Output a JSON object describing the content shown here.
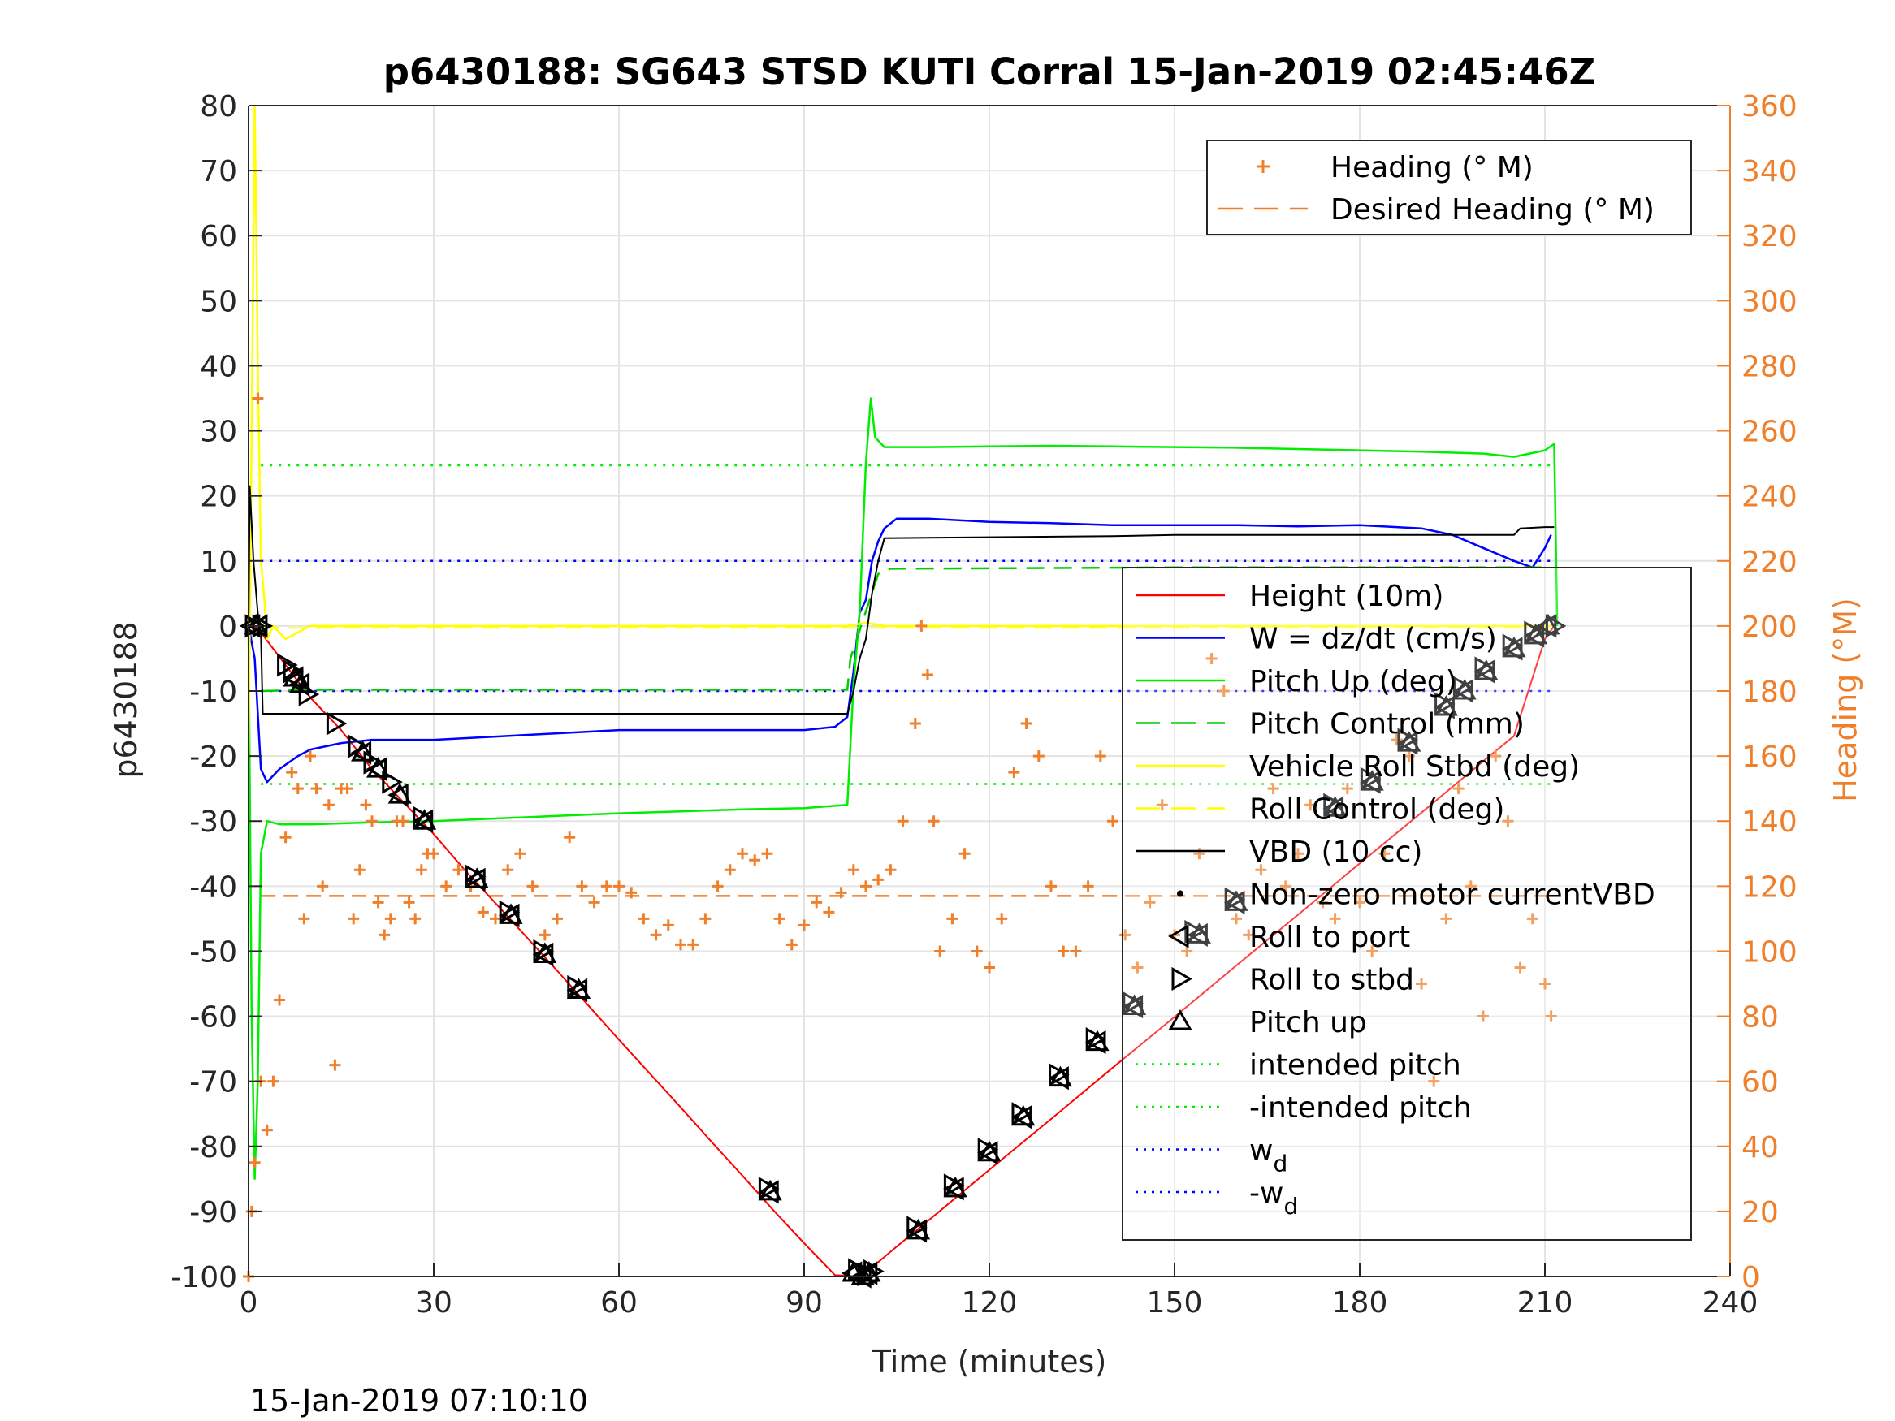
{
  "footer": {
    "timestamp": "15-Jan-2019 07:10:10"
  },
  "chart_data": {
    "type": "line",
    "title": "p6430188: SG643 STSD KUTI Corral 15-Jan-2019 02:45:46Z",
    "xlabel": "Time (minutes)",
    "ylabel": "p6430188",
    "ylabel_right": "Heading (°M)",
    "xlim": [
      0,
      240
    ],
    "ylim": [
      -100,
      80
    ],
    "ylim_right": [
      0,
      360
    ],
    "x_ticks": [
      0,
      30,
      60,
      90,
      120,
      150,
      180,
      210,
      240
    ],
    "y_ticks": [
      80,
      70,
      60,
      50,
      40,
      30,
      20,
      10,
      0,
      -10,
      -20,
      -30,
      -40,
      -50,
      -60,
      -70,
      -80,
      -90,
      -100
    ],
    "y_ticks_right": [
      360,
      340,
      320,
      300,
      280,
      260,
      240,
      220,
      200,
      180,
      160,
      140,
      120,
      100,
      80,
      60,
      40,
      20,
      0
    ],
    "grid": true,
    "colors": {
      "height": "#ff0000",
      "w": "#0000ff",
      "pitch_up": "#00ee00",
      "pitch_control": "#00cc00",
      "roll": "#ffff00",
      "vbd": "#000000",
      "heading": "#ef7f2a",
      "intended_pitch": "#00ee00",
      "w_d": "#0000ff"
    },
    "legend_heading": [
      {
        "label": "Heading (° M)",
        "marker": "plus",
        "color": "#ef7f2a"
      },
      {
        "label": "Desired Heading (° M)",
        "marker": "dash",
        "color": "#ef7f2a"
      }
    ],
    "legend_main": [
      {
        "label": "Height (10m)",
        "marker": "line",
        "color": "#ff0000"
      },
      {
        "label": "W = dz/dt (cm/s)",
        "marker": "line",
        "color": "#0000ff"
      },
      {
        "label": "Pitch Up (deg)",
        "marker": "line",
        "color": "#00ee00"
      },
      {
        "label": "Pitch Control (mm)",
        "marker": "dash",
        "color": "#00cc00"
      },
      {
        "label": "Vehicle Roll Stbd (deg)",
        "marker": "line",
        "color": "#ffff00"
      },
      {
        "label": "Roll Control (deg)",
        "marker": "dash",
        "color": "#ffff00"
      },
      {
        "label": "VBD (10 cc)",
        "marker": "line",
        "color": "#000000"
      },
      {
        "label": "Non-zero motor currentVBD",
        "marker": "dot",
        "color": "#000000"
      },
      {
        "label": "Roll to port",
        "marker": "tri-left",
        "color": "#000000"
      },
      {
        "label": "Roll to stbd",
        "marker": "tri-right",
        "color": "#000000"
      },
      {
        "label": "Pitch up",
        "marker": "tri-up",
        "color": "#000000"
      },
      {
        "label": "intended pitch",
        "marker": "dotted",
        "color": "#00ee00"
      },
      {
        "label": "-intended pitch",
        "marker": "dotted",
        "color": "#00ee00"
      },
      {
        "label": "w",
        "sub": "d",
        "marker": "dotted",
        "color": "#0000ff"
      },
      {
        "label": "-w",
        "sub": "d",
        "marker": "dotted",
        "color": "#0000ff"
      }
    ],
    "reference_lines": {
      "intended_pitch": 24.7,
      "neg_intended_pitch": -24.3,
      "w_d": 10,
      "neg_w_d": -10,
      "desired_heading_deg": 117
    },
    "series": [
      {
        "name": "Height (10m)",
        "x": [
          0,
          1,
          2,
          6,
          10,
          15,
          20,
          25,
          30,
          35,
          40,
          45,
          50,
          55,
          60,
          65,
          70,
          75,
          80,
          85,
          90,
          95,
          99,
          102,
          105,
          110,
          120,
          130,
          140,
          150,
          160,
          170,
          180,
          190,
          200,
          205,
          210,
          211.5
        ],
        "y": [
          0,
          0,
          -1,
          -6,
          -11,
          -16,
          -22,
          -27,
          -32,
          -37.5,
          -42.6,
          -47.8,
          -53,
          -58.3,
          -63.6,
          -68.8,
          -74,
          -79.3,
          -84.5,
          -89.8,
          -94.9,
          -99.8,
          -100,
          -97.8,
          -95.4,
          -91.5,
          -83.6,
          -75.8,
          -67.9,
          -60.1,
          -52.2,
          -44.4,
          -36.5,
          -28.7,
          -20.8,
          -16.9,
          -2,
          0
        ]
      },
      {
        "name": "W = dz/dt (cm/s)",
        "x": [
          0,
          1,
          2,
          3,
          5,
          8,
          10,
          15,
          20,
          25,
          30,
          40,
          50,
          60,
          70,
          80,
          90,
          95,
          97,
          98,
          99,
          100,
          101,
          102,
          103,
          105,
          110,
          120,
          130,
          140,
          150,
          160,
          170,
          180,
          190,
          195,
          200,
          205,
          208,
          210,
          211
        ],
        "y": [
          0,
          -5,
          -22,
          -24,
          -22,
          -20,
          -19,
          -18,
          -17.5,
          -17.5,
          -17.5,
          -17,
          -16.5,
          -16,
          -16,
          -16,
          -16,
          -15.5,
          -14,
          -7,
          2,
          4,
          10,
          13,
          15,
          16.5,
          16.5,
          16,
          15.8,
          15.5,
          15.5,
          15.5,
          15.3,
          15.5,
          15,
          14,
          12,
          10,
          9,
          12,
          14
        ]
      },
      {
        "name": "Pitch Up (deg)",
        "x": [
          0,
          0.5,
          1,
          1.5,
          2,
          3,
          5,
          10,
          20,
          30,
          40,
          50,
          60,
          70,
          80,
          90,
          97,
          98,
          99,
          100,
          100.8,
          101.5,
          103,
          110,
          120,
          130,
          140,
          150,
          160,
          170,
          180,
          190,
          200,
          205,
          210,
          211.5,
          212
        ],
        "y": [
          0,
          -60,
          -85,
          -70,
          -35,
          -30,
          -30.5,
          -30.5,
          -30.2,
          -30,
          -29.6,
          -29.2,
          -28.8,
          -28.5,
          -28.2,
          -28,
          -27.5,
          -9,
          2,
          25,
          35,
          29,
          27.5,
          27.5,
          27.6,
          27.7,
          27.6,
          27.5,
          27.4,
          27.2,
          27,
          26.8,
          26.5,
          26,
          27,
          28,
          0
        ]
      },
      {
        "name": "Pitch Control (mm)",
        "x": [
          2,
          12,
          70,
          97,
          97.5,
          102,
          104,
          150,
          211
        ],
        "y": [
          -10,
          -9.8,
          -9.8,
          -9.8,
          -5,
          8,
          8.8,
          9,
          9
        ]
      },
      {
        "name": "Vehicle Roll Stbd (deg)",
        "x": [
          0,
          0.5,
          1,
          1.5,
          2,
          2.5,
          3,
          4,
          6,
          8,
          10,
          15,
          20,
          30,
          40,
          60,
          80,
          97,
          100,
          103,
          120,
          150,
          170,
          190,
          210,
          211
        ],
        "y": [
          -20,
          30,
          80,
          40,
          10,
          5,
          -2,
          0,
          -2,
          -1,
          0,
          0,
          0,
          0,
          0,
          0,
          0,
          0,
          0.5,
          0,
          0,
          0,
          0,
          0,
          0,
          0
        ]
      },
      {
        "name": "Roll Control (deg)",
        "x": [
          2,
          211
        ],
        "y": [
          -0.3,
          -0.3
        ]
      },
      {
        "name": "VBD (10 cc)",
        "x": [
          0,
          0.2,
          0.8,
          1.5,
          2,
          2.3,
          97,
          98,
          99,
          100,
          101,
          102,
          103,
          140,
          150,
          175,
          190,
          205,
          206,
          210,
          211.5
        ],
        "y": [
          0,
          21.5,
          10,
          2,
          -1,
          -13.5,
          -13.5,
          -10,
          -5,
          -2,
          5,
          10,
          13.5,
          13.8,
          14,
          14,
          14,
          14,
          15,
          15.2,
          15.2
        ]
      },
      {
        "name": "Heading (° M)",
        "x": [
          0,
          0.5,
          1,
          1.5,
          2,
          3,
          4,
          5,
          6,
          7,
          8,
          9,
          10,
          11,
          12,
          13,
          14,
          15,
          16,
          17,
          18,
          19,
          20,
          21,
          22,
          23,
          24,
          25,
          26,
          27,
          28,
          29,
          30,
          32,
          34,
          36,
          38,
          40,
          42,
          44,
          46,
          48,
          50,
          52,
          54,
          56,
          58,
          60,
          62,
          64,
          66,
          68,
          70,
          72,
          74,
          76,
          78,
          80,
          82,
          84,
          86,
          88,
          90,
          92,
          94,
          96,
          98,
          100,
          102,
          104,
          106,
          108,
          109,
          110,
          111,
          112,
          114,
          116,
          118,
          120,
          122,
          124,
          126,
          128,
          130,
          132,
          134,
          136,
          138,
          140,
          142,
          144,
          146,
          148,
          150,
          152,
          154,
          156,
          158,
          160,
          162,
          164,
          166,
          168,
          170,
          172,
          174,
          176,
          178,
          180,
          182,
          184,
          186,
          188,
          190,
          192,
          194,
          196,
          198,
          200,
          202,
          204,
          206,
          208,
          210,
          211
        ],
        "y": [
          0,
          20,
          35,
          270,
          60,
          45,
          60,
          85,
          135,
          155,
          150,
          110,
          160,
          150,
          120,
          145,
          65,
          150,
          150,
          110,
          125,
          145,
          140,
          115,
          105,
          110,
          140,
          140,
          115,
          110,
          125,
          130,
          130,
          120,
          125,
          120,
          112,
          110,
          125,
          130,
          120,
          105,
          110,
          135,
          120,
          115,
          120,
          120,
          118,
          110,
          105,
          108,
          102,
          102,
          110,
          120,
          125,
          130,
          128,
          130,
          110,
          102,
          108,
          115,
          112,
          118,
          125,
          120,
          122,
          125,
          140,
          170,
          200,
          185,
          140,
          100,
          110,
          130,
          100,
          95,
          110,
          155,
          170,
          160,
          120,
          100,
          100,
          120,
          160,
          140,
          105,
          95,
          115,
          145,
          105,
          100,
          130,
          190,
          180,
          110,
          105,
          125,
          150,
          120,
          130,
          145,
          115,
          110,
          150,
          115,
          100,
          130,
          165,
          160,
          90,
          60,
          110,
          150,
          120,
          80,
          160,
          140,
          95,
          110,
          90,
          80
        ]
      }
    ],
    "markers": {
      "roll_to_port": {
        "x": [
          0.5,
          1.7,
          7.5,
          8.5,
          18.5,
          21,
          24.5,
          28.5,
          37,
          42.5,
          48,
          53.5,
          84.5,
          98,
          99.5,
          100.5,
          108.5,
          114.5,
          120,
          125.5,
          131.5,
          137.5,
          143.5,
          154,
          160,
          176,
          182,
          188,
          194,
          197,
          200.5,
          205,
          208.5,
          210.5
        ],
        "y": [
          0,
          0,
          -8,
          -9,
          -19.5,
          -22,
          -26,
          -30,
          -39,
          -44.5,
          -50.5,
          -56,
          -87,
          -99.5,
          -100,
          -99.5,
          -93,
          -86.5,
          -81,
          -75.5,
          -69.5,
          -64,
          -58.5,
          -47.5,
          -42.5,
          -28,
          -24,
          -18,
          -12.5,
          -10,
          -7,
          -3.5,
          -1.5,
          0
        ]
      },
      "roll_to_stbd": {
        "x": [
          0.8,
          2,
          6,
          7,
          9.5,
          14,
          17.5,
          20,
          23,
          28,
          36.5,
          42,
          47.5,
          53,
          84,
          98.5,
          100,
          101,
          108,
          114,
          119.5,
          125,
          131,
          137,
          143,
          153,
          159.5,
          175.5,
          181.5,
          187.5,
          193.5,
          196.5,
          200,
          204.5,
          208,
          211.5
        ],
        "y": [
          0,
          0,
          -6,
          -7,
          -10.5,
          -15,
          -18.5,
          -21,
          -24,
          -29.5,
          -38.5,
          -44,
          -50,
          -55.5,
          -86.5,
          -99,
          -99.7,
          -99.2,
          -92.5,
          -86,
          -80.5,
          -75,
          -69,
          -63.5,
          -58,
          -47,
          -42,
          -27.5,
          -23.5,
          -17.5,
          -12,
          -9.5,
          -6.5,
          -3,
          -1,
          0
        ]
      },
      "pitch_up": {
        "x": [
          1.2,
          7.5,
          8.5,
          18.5,
          21,
          24.5,
          28.5,
          37,
          42.5,
          48,
          53.5,
          84.5,
          98,
          99.5,
          100.5,
          108.5,
          114.5,
          120,
          125.5,
          131.5,
          137.5,
          143.5,
          154,
          160,
          176,
          182,
          188,
          194,
          197,
          200.5,
          205,
          208.5,
          210.5
        ],
        "y": [
          0,
          -8,
          -9,
          -19.5,
          -22,
          -26,
          -30,
          -39,
          -44.5,
          -50.5,
          -56,
          -87,
          -99.5,
          -100,
          -99.5,
          -93,
          -86.5,
          -81,
          -75.5,
          -69.5,
          -64,
          -58.5,
          -47.5,
          -42.5,
          -28,
          -24,
          -18,
          -12.5,
          -10,
          -7,
          -3.5,
          -1.5,
          0
        ]
      }
    }
  }
}
